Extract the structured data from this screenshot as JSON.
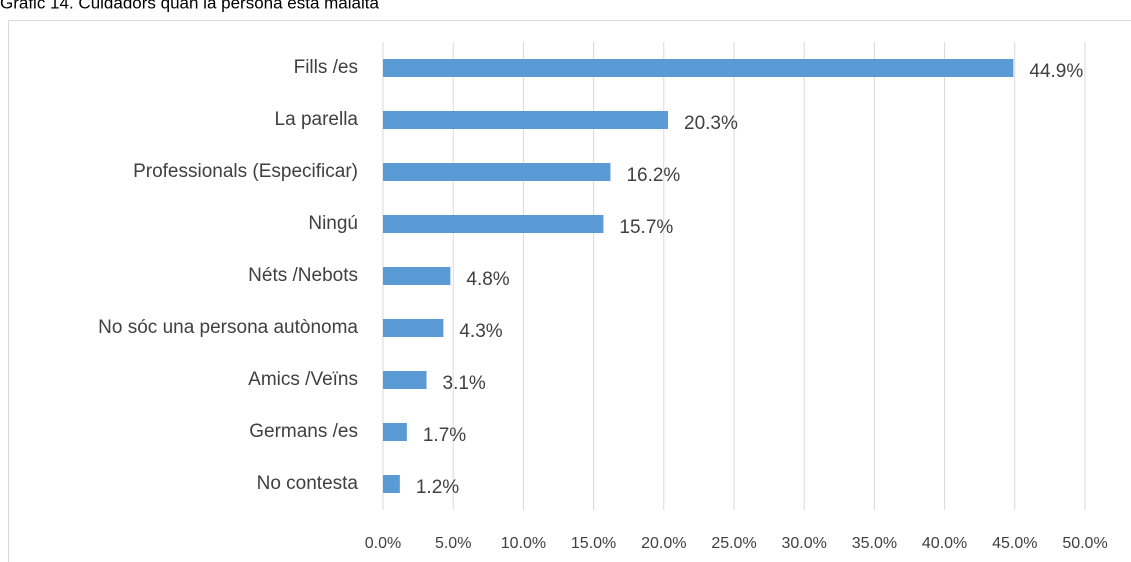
{
  "chart_data": {
    "type": "hbar",
    "title": "Gràfic 14. Cuidadors quan la persona està malalta",
    "categories": [
      "Fills /es",
      "La parella",
      "Professionals (Especificar)",
      "Ningú",
      "Néts /Nebots",
      "No sóc una persona autònoma",
      "Amics /Veïns",
      "Germans /es",
      "No contesta"
    ],
    "values": [
      44.9,
      20.3,
      16.2,
      15.7,
      4.8,
      4.3,
      3.1,
      1.7,
      1.2
    ],
    "value_labels": [
      "44.9%",
      "20.3%",
      "16.2%",
      "15.7%",
      "4.8%",
      "4.3%",
      "3.1%",
      "1.7%",
      "1.2%"
    ],
    "color": "#5b9bd5",
    "xlim": [
      0,
      50
    ],
    "xticks": [
      {
        "value": 0,
        "label": "0.0%"
      },
      {
        "value": 5,
        "label": "5.0%"
      },
      {
        "value": 10,
        "label": "10.0%"
      },
      {
        "value": 15,
        "label": "15.0%"
      },
      {
        "value": 20,
        "label": "20.0%"
      },
      {
        "value": 25,
        "label": "25.0%"
      },
      {
        "value": 30,
        "label": "30.0%"
      },
      {
        "value": 35,
        "label": "35.0%"
      },
      {
        "value": 40,
        "label": "40.0%"
      },
      {
        "value": 45,
        "label": "45.0%"
      },
      {
        "value": 50,
        "label": "50.0%"
      }
    ],
    "grid": true
  }
}
